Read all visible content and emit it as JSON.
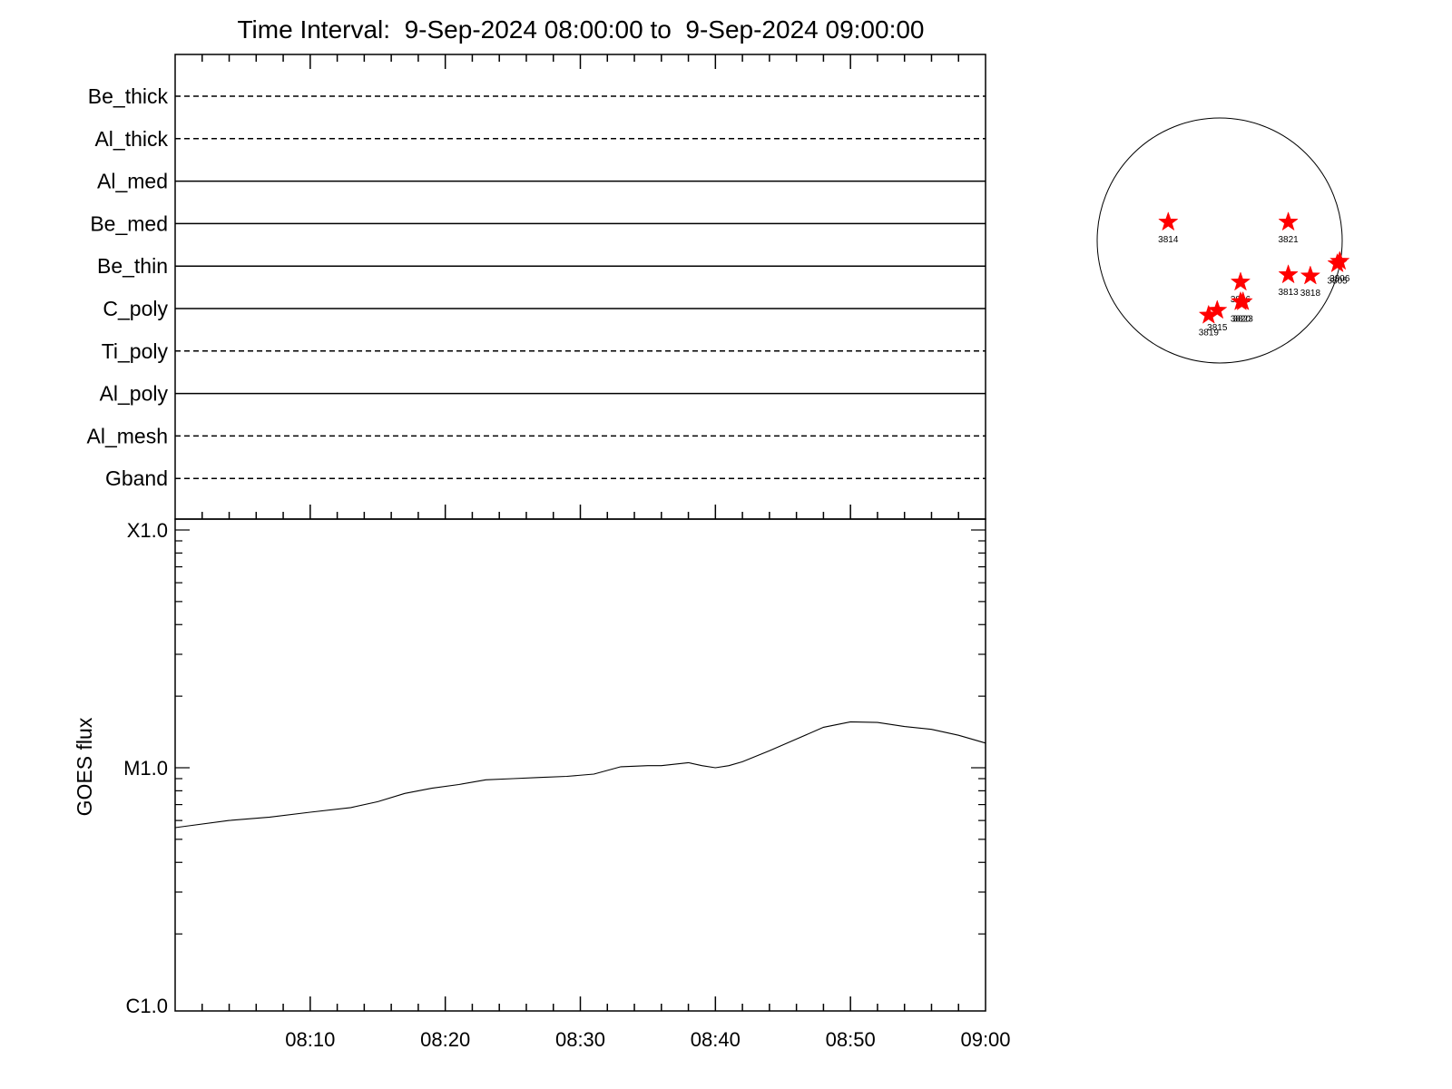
{
  "title": "Time Interval:  9-Sep-2024 08:00:00 to  9-Sep-2024 09:00:00",
  "chart_data": [
    {
      "type": "line",
      "panel": "filter-status",
      "filters": [
        {
          "name": "Be_thick",
          "style": "dashed"
        },
        {
          "name": "Al_thick",
          "style": "dashed"
        },
        {
          "name": "Al_med",
          "style": "solid"
        },
        {
          "name": "Be_med",
          "style": "solid"
        },
        {
          "name": "Be_thin",
          "style": "solid"
        },
        {
          "name": "C_poly",
          "style": "solid"
        },
        {
          "name": "Ti_poly",
          "style": "dashed"
        },
        {
          "name": "Al_poly",
          "style": "solid"
        },
        {
          "name": "Al_mesh",
          "style": "dashed"
        },
        {
          "name": "Gband",
          "style": "dashed"
        }
      ]
    },
    {
      "type": "line",
      "panel": "goes-flux",
      "ylabel": "GOES flux",
      "yscale": "log",
      "ylim": [
        1e-06,
        0.0001
      ],
      "ytick_labels": [
        "X1.0",
        "M1.0",
        "C1.0"
      ],
      "ytick_values": [
        0.0001,
        1e-05,
        1e-06
      ],
      "xlim": [
        "08:00",
        "09:00"
      ],
      "xtick_labels": [
        "08:10",
        "08:20",
        "08:30",
        "08:40",
        "08:50",
        "09:00"
      ],
      "xtick_minutes": [
        10,
        20,
        30,
        40,
        50,
        60
      ],
      "series": [
        {
          "x_minutes": [
            0,
            1,
            4,
            7,
            10,
            13,
            15,
            17,
            19,
            21,
            23,
            25,
            27,
            29,
            31,
            33,
            35,
            36,
            38,
            39,
            40,
            41,
            42,
            44,
            46,
            48,
            50,
            52,
            54,
            56,
            58,
            60
          ],
          "y": [
            5.6e-06,
            5.7e-06,
            6e-06,
            6.2e-06,
            6.5e-06,
            6.8e-06,
            7.2e-06,
            7.8e-06,
            8.2e-06,
            8.5e-06,
            8.9e-06,
            9e-06,
            9.1e-06,
            9.2e-06,
            9.4e-06,
            1.01e-05,
            1.02e-05,
            1.02e-05,
            1.05e-05,
            1.02e-05,
            1e-05,
            1.02e-05,
            1.06e-05,
            1.18e-05,
            1.32e-05,
            1.48e-05,
            1.56e-05,
            1.55e-05,
            1.49e-05,
            1.45e-05,
            1.37e-05,
            1.27e-05
          ]
        }
      ]
    },
    {
      "type": "scatter",
      "panel": "solar-disk",
      "markers": [
        {
          "label": "3814",
          "dx": -0.42,
          "dy": -0.15
        },
        {
          "label": "3821",
          "dx": 0.56,
          "dy": -0.15
        },
        {
          "label": "3806",
          "dx": 0.98,
          "dy": 0.17
        },
        {
          "label": "3805",
          "dx": 0.96,
          "dy": 0.19
        },
        {
          "label": "3813",
          "dx": 0.56,
          "dy": 0.28
        },
        {
          "label": "3818",
          "dx": 0.74,
          "dy": 0.29
        },
        {
          "label": "3816",
          "dx": 0.17,
          "dy": 0.34
        },
        {
          "label": "3820",
          "dx": 0.17,
          "dy": 0.5
        },
        {
          "label": "3823",
          "dx": 0.19,
          "dy": 0.5
        },
        {
          "label": "3815",
          "dx": -0.02,
          "dy": 0.57
        },
        {
          "label": "3819",
          "dx": -0.09,
          "dy": 0.61
        }
      ]
    }
  ]
}
